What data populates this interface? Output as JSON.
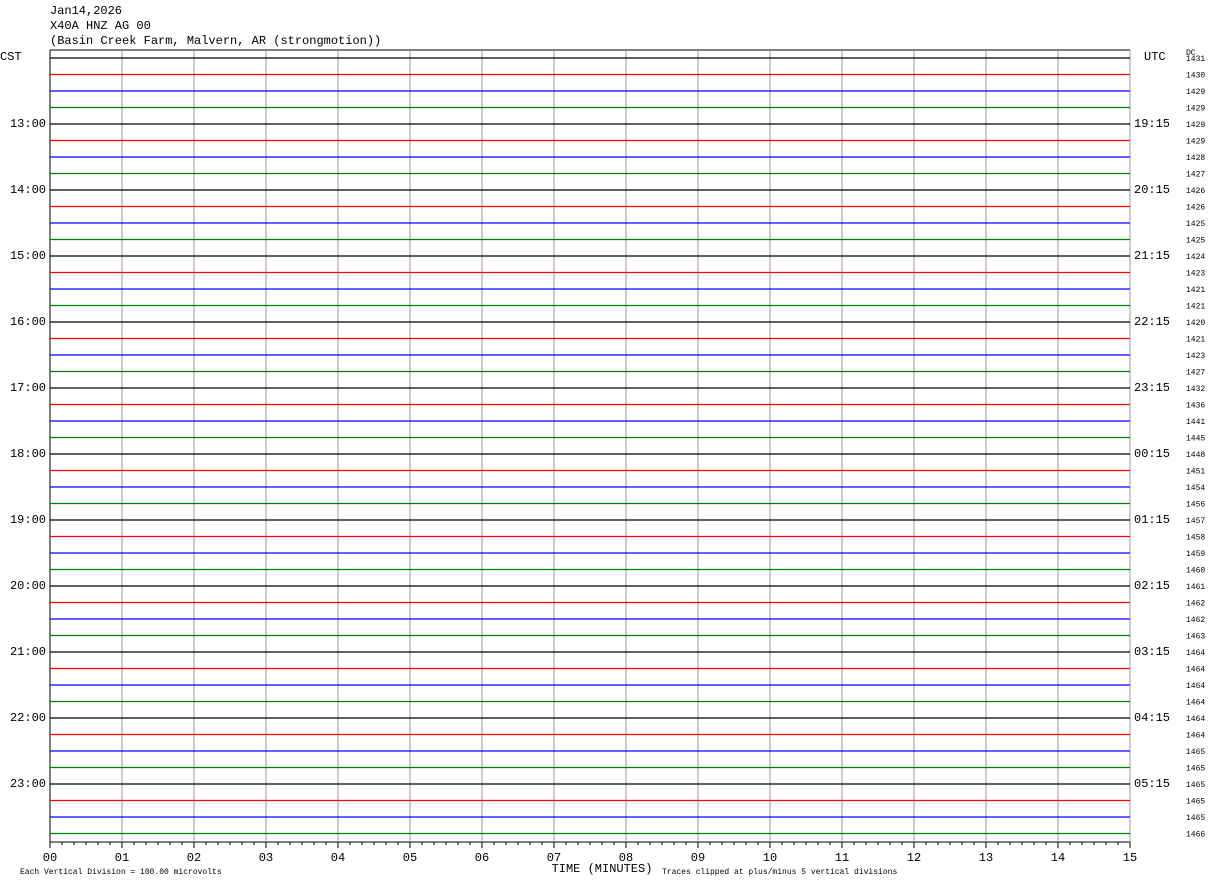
{
  "header": {
    "date": "Jan14,2026",
    "station": "X40A HNZ AG 00",
    "location": "(Basin Creek Farm, Malvern, AR (strongmotion))"
  },
  "left_label": "CST",
  "right_label": "UTC",
  "dc_label": "DC",
  "left_times": [
    "13:00",
    "14:00",
    "15:00",
    "16:00",
    "17:00",
    "18:00",
    "19:00",
    "20:00",
    "21:00",
    "22:00",
    "23:00"
  ],
  "right_times": [
    "19:15",
    "20:15",
    "21:15",
    "22:15",
    "23:15",
    "00:15",
    "01:15",
    "02:15",
    "03:15",
    "04:15",
    "05:15"
  ],
  "dc_values": [
    1431,
    1430,
    1429,
    1429,
    1429,
    1429,
    1428,
    1427,
    1426,
    1426,
    1425,
    1425,
    1424,
    1423,
    1421,
    1421,
    1420,
    1421,
    1423,
    1427,
    1432,
    1436,
    1441,
    1445,
    1448,
    1451,
    1454,
    1456,
    1457,
    1458,
    1459,
    1460,
    1461,
    1462,
    1462,
    1463,
    1464,
    1464,
    1464,
    1464,
    1464,
    1464,
    1465,
    1465,
    1465,
    1465,
    1465,
    1466
  ],
  "x_ticks": [
    "00",
    "01",
    "02",
    "03",
    "04",
    "05",
    "06",
    "07",
    "08",
    "09",
    "10",
    "11",
    "12",
    "13",
    "14",
    "15"
  ],
  "x_label": "TIME (MINUTES)",
  "footer_left": "Each Vertical Division =  100.00 microvolts",
  "footer_right": "Traces clipped at plus/minus 5 vertical divisions",
  "trace_colors": [
    "#000000",
    "#ff0000",
    "#0000ff",
    "#008000"
  ]
}
